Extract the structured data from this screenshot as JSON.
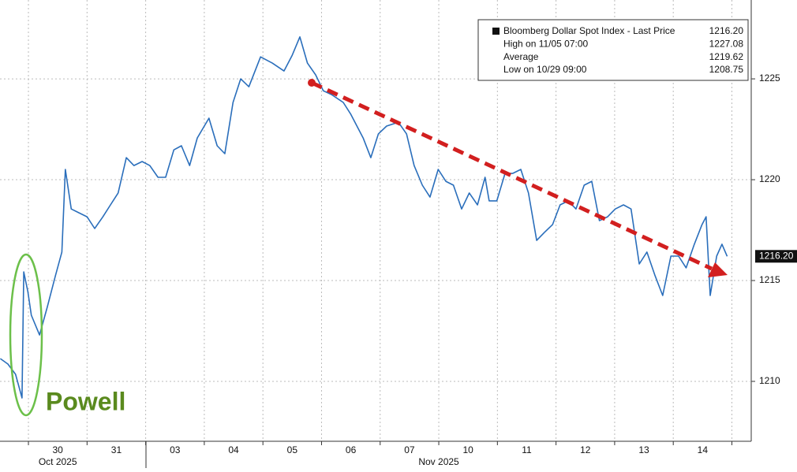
{
  "chart_data": {
    "type": "line",
    "series": [
      {
        "name": "Bloomberg Dollar Spot Index - Last Price",
        "color": "#2a6ebb",
        "x": [
          -0.48,
          -0.35,
          -0.22,
          -0.11,
          -0.08,
          -0.01,
          0.05,
          0.19,
          0.32,
          0.46,
          0.57,
          0.63,
          0.73,
          0.86,
          1.0,
          1.13,
          1.27,
          1.4,
          1.53,
          1.67,
          1.8,
          1.94,
          2.07,
          2.21,
          2.34,
          2.48,
          2.61,
          2.75,
          2.88,
          3.08,
          3.22,
          3.35,
          3.49,
          3.62,
          3.76,
          3.96,
          4.16,
          4.36,
          4.5,
          4.63,
          4.76,
          4.9,
          5.03,
          5.17,
          5.37,
          5.5,
          5.71,
          5.84,
          5.97,
          6.11,
          6.31,
          6.45,
          6.58,
          6.72,
          6.85,
          6.99,
          7.12,
          7.25,
          7.39,
          7.52,
          7.66,
          7.79,
          7.86,
          7.99,
          8.13,
          8.26,
          8.4,
          8.53,
          8.67,
          8.8,
          8.94,
          9.07,
          9.21,
          9.34,
          9.48,
          9.61,
          9.74,
          9.88,
          10.01,
          10.15,
          10.28,
          10.42,
          10.55,
          10.69,
          10.82,
          10.96,
          11.09,
          11.22,
          11.36,
          11.49,
          11.56,
          11.63,
          11.74,
          11.83,
          11.92
        ],
        "values": [
          1211.13,
          1210.86,
          1210.35,
          1209.18,
          1215.43,
          1214.45,
          1213.28,
          1212.3,
          1213.67,
          1215.23,
          1216.41,
          1220.51,
          1218.55,
          1218.36,
          1218.16,
          1217.58,
          1218.16,
          1218.75,
          1219.34,
          1221.09,
          1220.7,
          1220.9,
          1220.7,
          1220.12,
          1220.12,
          1221.48,
          1221.68,
          1220.7,
          1222.07,
          1223.05,
          1221.68,
          1221.29,
          1223.83,
          1225.0,
          1224.61,
          1226.09,
          1225.78,
          1225.39,
          1226.17,
          1227.08,
          1225.78,
          1225.2,
          1224.41,
          1224.22,
          1223.83,
          1223.24,
          1222.07,
          1221.09,
          1222.27,
          1222.66,
          1222.85,
          1222.27,
          1220.7,
          1219.73,
          1219.14,
          1220.51,
          1219.92,
          1219.73,
          1218.55,
          1219.34,
          1218.75,
          1220.12,
          1218.95,
          1218.95,
          1220.31,
          1220.31,
          1220.51,
          1219.34,
          1216.99,
          1217.38,
          1217.77,
          1218.75,
          1218.95,
          1218.55,
          1219.73,
          1219.92,
          1217.97,
          1218.16,
          1218.55,
          1218.75,
          1218.55,
          1215.82,
          1216.41,
          1215.23,
          1214.26,
          1216.21,
          1216.21,
          1215.63,
          1216.8,
          1217.77,
          1218.16,
          1214.26,
          1216.21,
          1216.8,
          1216.2
        ]
      }
    ],
    "xlim": [
      -0.485,
      12.33
    ],
    "xticks": [
      {
        "value": 0.5,
        "label": "30"
      },
      {
        "value": 1.5,
        "label": "31"
      },
      {
        "value": 2.5,
        "label": "03"
      },
      {
        "value": 3.5,
        "label": "04"
      },
      {
        "value": 4.5,
        "label": "05"
      },
      {
        "value": 5.5,
        "label": "06"
      },
      {
        "value": 6.5,
        "label": "07"
      },
      {
        "value": 7.5,
        "label": "10"
      },
      {
        "value": 8.5,
        "label": "11"
      },
      {
        "value": 9.5,
        "label": "12"
      },
      {
        "value": 10.5,
        "label": "13"
      },
      {
        "value": 11.5,
        "label": "14"
      }
    ],
    "xgrid": [
      0,
      1,
      2,
      3,
      4,
      5,
      6,
      7,
      8,
      9,
      10,
      11,
      12
    ],
    "month_labels": [
      {
        "value": 0.5,
        "label": "Oct 2025"
      },
      {
        "value": 7,
        "label": "Nov 2025"
      }
    ],
    "ylim": [
      1207.03,
      1228.91
    ],
    "yticks": [
      1210,
      1215,
      1220,
      1225
    ],
    "grid": true,
    "legend_stats": [
      {
        "name": "Bloomberg Dollar Spot Index - Last Price",
        "value": {
          "value": 1216.2,
          "label": "1216.20"
        }
      },
      {
        "name": "High on 11/05 07:00",
        "value": {
          "value": 1227.08,
          "label": "1227.08"
        }
      },
      {
        "name": "Average",
        "value": {
          "value": 1219.62,
          "label": "1219.62"
        }
      },
      {
        "name": "Low on 10/29 09:00",
        "value": {
          "value": 1208.75,
          "label": "1208.75"
        }
      }
    ],
    "last_price_label": {
      "value": 1216.2,
      "label": "1216.20"
    },
    "annotation": "Powell"
  }
}
